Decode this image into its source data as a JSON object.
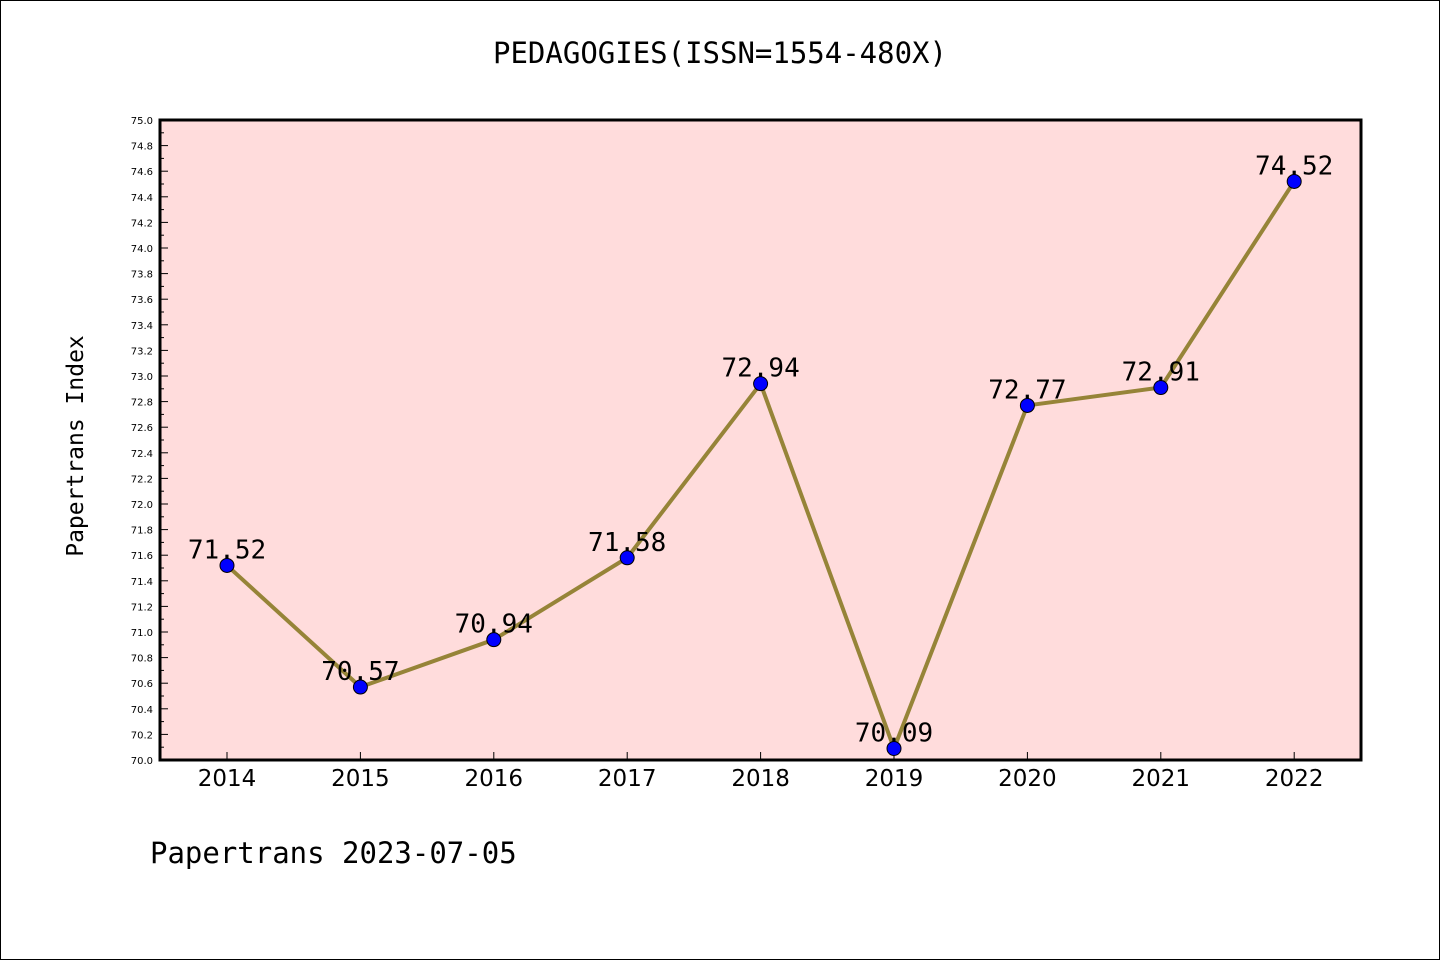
{
  "chart_data": {
    "type": "line",
    "title": "PEDAGOGIES(ISSN=1554-480X)",
    "ylabel": "Papertrans Index",
    "xlabel": "",
    "categories": [
      "2014",
      "2015",
      "2016",
      "2017",
      "2018",
      "2019",
      "2020",
      "2021",
      "2022"
    ],
    "series": [
      {
        "values": [
          71.52,
          70.57,
          70.94,
          71.58,
          72.94,
          70.09,
          72.77,
          72.91,
          74.52
        ],
        "data_labels": [
          "71.52",
          "70.57",
          "70.94",
          "71.58",
          "72.94",
          "70.09",
          "72.77",
          "72.91",
          "74.52"
        ]
      }
    ],
    "ylim": [
      70.0,
      75.0
    ],
    "y_ticks": [
      "70.0",
      "70.2",
      "70.4",
      "70.6",
      "70.8",
      "71.0",
      "71.2",
      "71.4",
      "71.6",
      "71.8",
      "72.0",
      "72.2",
      "72.4",
      "72.6",
      "72.8",
      "73.0",
      "73.2",
      "73.4",
      "73.6",
      "73.8",
      "74.0",
      "74.2",
      "74.4",
      "74.6",
      "74.8",
      "75.0"
    ],
    "grid": false,
    "colors": {
      "plot_background": "#ffdcdc",
      "line": "#968438",
      "marker": "#0000ff"
    }
  },
  "footer": {
    "note": "Papertrans 2023-07-05"
  }
}
